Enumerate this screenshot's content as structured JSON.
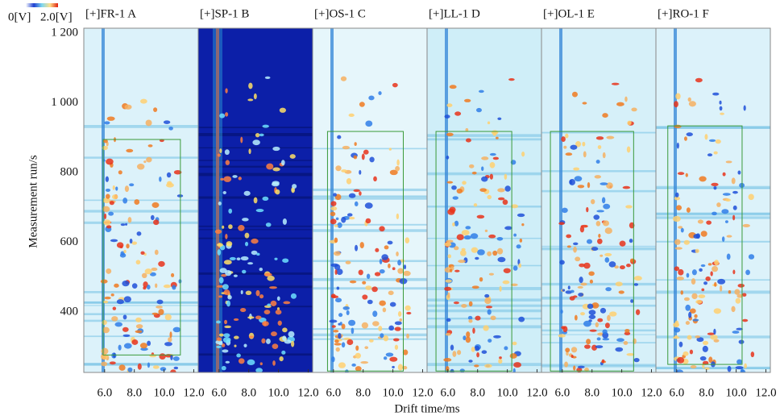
{
  "chart_data": {
    "type": "heatmap",
    "xlabel": "Drift time/ms",
    "ylabel": "Measurement run/s",
    "ylim": [
      227,
      1214
    ],
    "yticks": [
      400,
      600,
      800,
      {
        "value": 1000,
        "label": "1 000"
      },
      {
        "value": 1200,
        "label": "1 200"
      }
    ],
    "xlim": [
      4.6,
      12.3
    ],
    "xticks": [
      {
        "value": 6,
        "label": "6.0"
      },
      {
        "value": 8,
        "label": "8.0"
      },
      {
        "value": 10,
        "label": "10.0"
      },
      {
        "value": 12,
        "label": "12.0"
      }
    ],
    "colorbar": {
      "min_label": "0[V]",
      "max_label": "2.0[V]",
      "colors": [
        "#ffffff",
        "#1e3fd0",
        "#7fd8f0",
        "#ffe08a",
        "#e02010"
      ]
    },
    "panels": [
      {
        "title": "[+]FR-1  A",
        "background": "#dcf2fa",
        "box": {
          "x": [
            5.9,
            11.1
          ],
          "y": [
            277,
            895
          ]
        }
      },
      {
        "title": "[+]SP-1  B",
        "background": "#0c1fa8"
      },
      {
        "title": "[+]OS-1  C",
        "background": "#e6f6fb",
        "box": {
          "x": [
            5.6,
            10.7
          ],
          "y": [
            231,
            918
          ]
        }
      },
      {
        "title": "[+]LL-1  D",
        "background": "#cfeef8",
        "box": {
          "x": [
            5.2,
            10.3
          ],
          "y": [
            231,
            918
          ]
        }
      },
      {
        "title": "[+]OL-1  E",
        "background": "#d6f0f9",
        "box": {
          "x": [
            5.2,
            10.8
          ],
          "y": [
            231,
            918
          ]
        }
      },
      {
        "title": "[+]RO-1  F",
        "background": "#dcf2fa",
        "box": {
          "x": [
            5.4,
            10.4
          ],
          "y": [
            250,
            934
          ]
        }
      }
    ]
  }
}
